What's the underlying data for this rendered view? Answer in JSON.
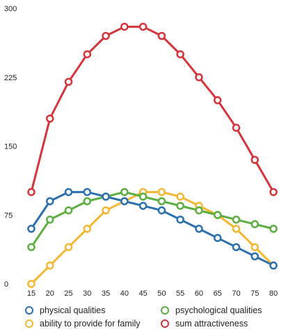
{
  "chart_data": {
    "type": "line",
    "x": [
      15,
      20,
      25,
      30,
      35,
      40,
      45,
      50,
      55,
      60,
      65,
      70,
      75,
      80
    ],
    "yticks": [
      0,
      75,
      150,
      225,
      300
    ],
    "ylim": [
      0,
      300
    ],
    "xlim": [
      15,
      80
    ],
    "grid": false,
    "legend_position": "bottom",
    "series": [
      {
        "name": "physical qualities",
        "color": "#2b6fae",
        "values": [
          60,
          90,
          100,
          100,
          95,
          90,
          85,
          80,
          70,
          60,
          50,
          40,
          30,
          20
        ]
      },
      {
        "name": "psychological qualities",
        "color": "#5aae3e",
        "values": [
          40,
          70,
          80,
          90,
          95,
          100,
          95,
          90,
          85,
          80,
          75,
          70,
          65,
          60
        ]
      },
      {
        "name": "ability to provide for family",
        "color": "#f5b731",
        "values": [
          0,
          20,
          40,
          60,
          80,
          90,
          100,
          100,
          95,
          85,
          75,
          60,
          40,
          20
        ]
      },
      {
        "name": "sum attractiveness",
        "color": "#d4343a",
        "values": [
          100,
          180,
          220,
          250,
          270,
          280,
          280,
          270,
          250,
          225,
          200,
          170,
          135,
          100
        ]
      }
    ]
  }
}
